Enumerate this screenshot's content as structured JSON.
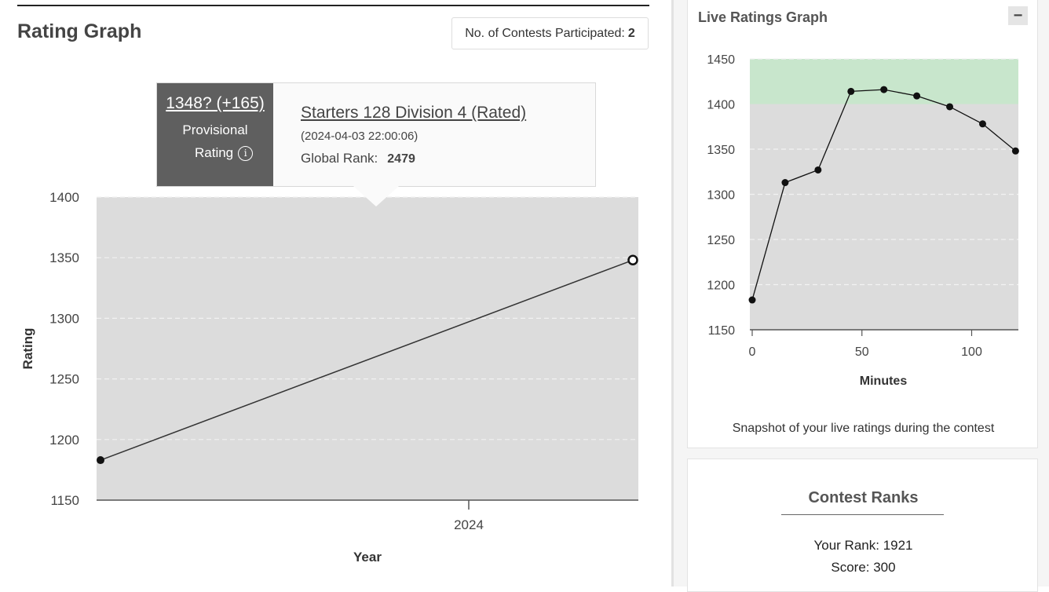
{
  "rating_graph": {
    "title": "Rating Graph",
    "contests_label": "No. of Contests Participated:",
    "contests_count": "2"
  },
  "tooltip": {
    "rating": "1348? (+165)",
    "provisional": "Provisional",
    "rating_label": "Rating",
    "info_glyph": "i",
    "contest_name": "Starters 128 Division 4 (Rated)",
    "date": "(2024-04-03 22:00:06)",
    "global_rank_label": "Global Rank:",
    "global_rank": "2479"
  },
  "live_graph": {
    "title": "Live Ratings Graph",
    "minimize_glyph": "−",
    "snapshot_text": "Snapshot of your live ratings during the contest"
  },
  "contest_ranks": {
    "title": "Contest Ranks",
    "your_rank": "Your Rank: 1921",
    "score": "Score: 300"
  },
  "chart_data": [
    {
      "type": "line",
      "xlabel": "Year",
      "ylabel": "Rating",
      "ylim": [
        1150,
        1400
      ],
      "yticks": [
        1150,
        1200,
        1250,
        1300,
        1350,
        1400
      ],
      "xticks": [
        "2024"
      ],
      "grid": true,
      "points": [
        {
          "x": "start",
          "y": 1183
        },
        {
          "x": "2024-04-03",
          "y": 1348
        }
      ]
    },
    {
      "type": "line",
      "xlabel": "Minutes",
      "ylabel": "",
      "ylim": [
        1150,
        1450
      ],
      "xlim": [
        -1,
        121
      ],
      "yticks": [
        1150,
        1200,
        1250,
        1300,
        1350,
        1400,
        1450
      ],
      "xticks": [
        0,
        50,
        100
      ],
      "grid": true,
      "highlight_band": [
        1400,
        1450
      ],
      "x": [
        0,
        15,
        30,
        45,
        60,
        75,
        90,
        105,
        120
      ],
      "y": [
        1183,
        1313,
        1327,
        1414,
        1416,
        1409,
        1397,
        1378,
        1348
      ]
    }
  ],
  "colors": {
    "plot_bg": "#dcdcdc",
    "band": "#c8e6cc",
    "tooltip_dark": "#5f5f5f"
  }
}
